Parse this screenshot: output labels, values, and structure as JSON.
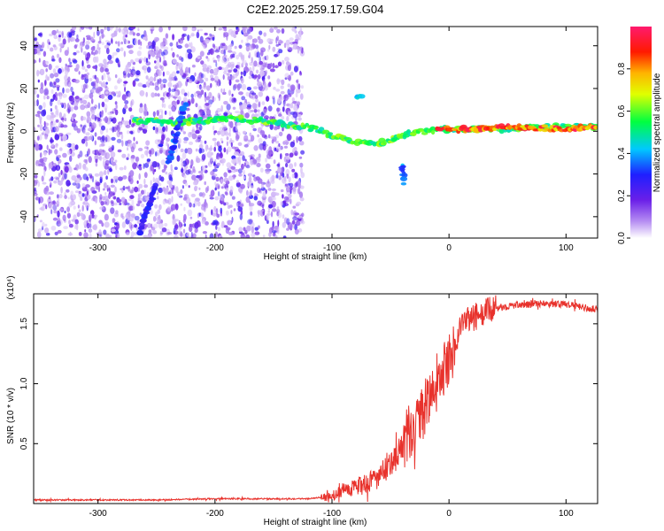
{
  "title": "C2E2.2025.259.17.59.G04",
  "chart_data": [
    {
      "type": "heatmap",
      "name": "spectrogram",
      "xlabel": "Height of straight line (km)",
      "ylabel": "Frequency (Hz)",
      "xlim": [
        -355,
        127
      ],
      "ylim": [
        -50,
        49
      ],
      "xticks": [
        -300,
        -200,
        -100,
        0,
        100
      ],
      "yticks": [
        -40,
        -20,
        0,
        20,
        40
      ],
      "colorbar": {
        "label": "Normalized spectral amplitude",
        "range": [
          0,
          1
        ],
        "ticks": [
          "0.0",
          "0.2",
          "0.4",
          "0.6",
          "0.8"
        ],
        "tick_values": [
          0.0,
          0.2,
          0.4,
          0.6,
          0.8
        ]
      },
      "noise_region_km": [
        -355,
        -125
      ],
      "features": [
        {
          "name": "signal-track",
          "points": [
            [
              -270,
              5
            ],
            [
              -230,
              4
            ],
            [
              -190,
              6
            ],
            [
              -160,
              5
            ],
            [
              -140,
              3
            ],
            [
              -120,
              2
            ],
            [
              -100,
              -2
            ],
            [
              -80,
              -5
            ],
            [
              -60,
              -6
            ],
            [
              -45,
              -3
            ],
            [
              -35,
              -1
            ],
            [
              -20,
              0
            ],
            [
              0,
              1
            ],
            [
              40,
              1
            ],
            [
              80,
              2
            ],
            [
              127,
              2
            ]
          ],
          "amplitude": 0.6
        },
        {
          "name": "vertical-streak",
          "points": [
            [
              -240,
              -15
            ],
            [
              -230,
              5
            ],
            [
              -225,
              14
            ]
          ],
          "amplitude": 0.35
        },
        {
          "name": "lower-diagonal",
          "points": [
            [
              -265,
              -48
            ],
            [
              -250,
              -25
            ]
          ],
          "amplitude": 0.3
        },
        {
          "name": "strong-return",
          "points": [
            [
              -10,
              1
            ],
            [
              20,
              1
            ],
            [
              60,
              2
            ],
            [
              100,
              1
            ],
            [
              127,
              2
            ]
          ],
          "amplitude": 0.9
        },
        {
          "name": "high-blob",
          "points": [
            [
              -80,
              17
            ],
            [
              -74,
              16
            ]
          ],
          "amplitude": 0.45
        },
        {
          "name": "low-tail",
          "points": [
            [
              -40,
              -15
            ],
            [
              -38,
              -25
            ]
          ],
          "amplitude": 0.4
        }
      ]
    },
    {
      "type": "line",
      "name": "snr",
      "xlabel": "Height of straight line (km)",
      "ylabel": "SNR (10 * v/v)",
      "scale_label": "(x10⁴)",
      "xlim": [
        -355,
        127
      ],
      "ylim": [
        0,
        1.75
      ],
      "xticks": [
        -300,
        -200,
        -100,
        0,
        100
      ],
      "yticks": [
        0.5,
        1.0,
        1.5
      ],
      "ytick_labels": [
        "0.5",
        "1.0",
        "1.5"
      ],
      "color": "#e8322c",
      "series": [
        {
          "name": "SNR",
          "x": [
            -355,
            -300,
            -250,
            -200,
            -150,
            -120,
            -100,
            -90,
            -80,
            -70,
            -60,
            -50,
            -45,
            -40,
            -35,
            -30,
            -25,
            -20,
            -15,
            -10,
            -5,
            0,
            5,
            10,
            20,
            30,
            40,
            60,
            80,
            100,
            127
          ],
          "y": [
            0.03,
            0.03,
            0.03,
            0.04,
            0.04,
            0.04,
            0.06,
            0.12,
            0.14,
            0.16,
            0.22,
            0.35,
            0.4,
            0.45,
            0.55,
            0.6,
            0.7,
            0.8,
            0.9,
            1.0,
            1.1,
            1.2,
            1.3,
            1.5,
            1.55,
            1.6,
            1.63,
            1.66,
            1.67,
            1.66,
            1.62
          ]
        }
      ]
    }
  ]
}
